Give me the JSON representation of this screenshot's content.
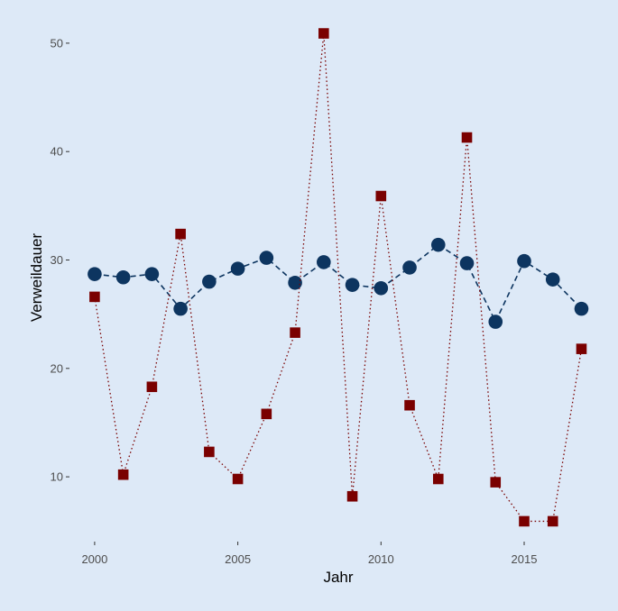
{
  "chart_data": {
    "type": "line",
    "xlabel": "Jahr",
    "ylabel": "Verweildauer",
    "xlim": [
      1999.5,
      2017.5
    ],
    "ylim": [
      4,
      52
    ],
    "x_ticks": [
      2000,
      2005,
      2010,
      2015
    ],
    "y_ticks": [
      10,
      20,
      30,
      40,
      50
    ],
    "grid": false,
    "background": "#dde9f7",
    "x": [
      2000,
      2001,
      2002,
      2003,
      2004,
      2005,
      2006,
      2007,
      2008,
      2009,
      2010,
      2011,
      2012,
      2013,
      2014,
      2015,
      2016,
      2017
    ],
    "series": [
      {
        "marker": "circle",
        "line_style": "dashed",
        "color": "#0d3560",
        "values": [
          28.7,
          28.4,
          28.7,
          25.5,
          28.0,
          29.2,
          30.2,
          27.9,
          29.8,
          27.7,
          27.4,
          29.3,
          31.4,
          29.7,
          24.3,
          29.9,
          28.2,
          25.5
        ]
      },
      {
        "marker": "square",
        "line_style": "dotted",
        "color": "#7a0000",
        "values": [
          26.6,
          10.2,
          18.3,
          32.4,
          12.3,
          9.8,
          15.8,
          23.3,
          50.9,
          8.2,
          35.9,
          16.6,
          9.8,
          41.3,
          9.5,
          5.9,
          5.9,
          21.8
        ]
      }
    ]
  }
}
